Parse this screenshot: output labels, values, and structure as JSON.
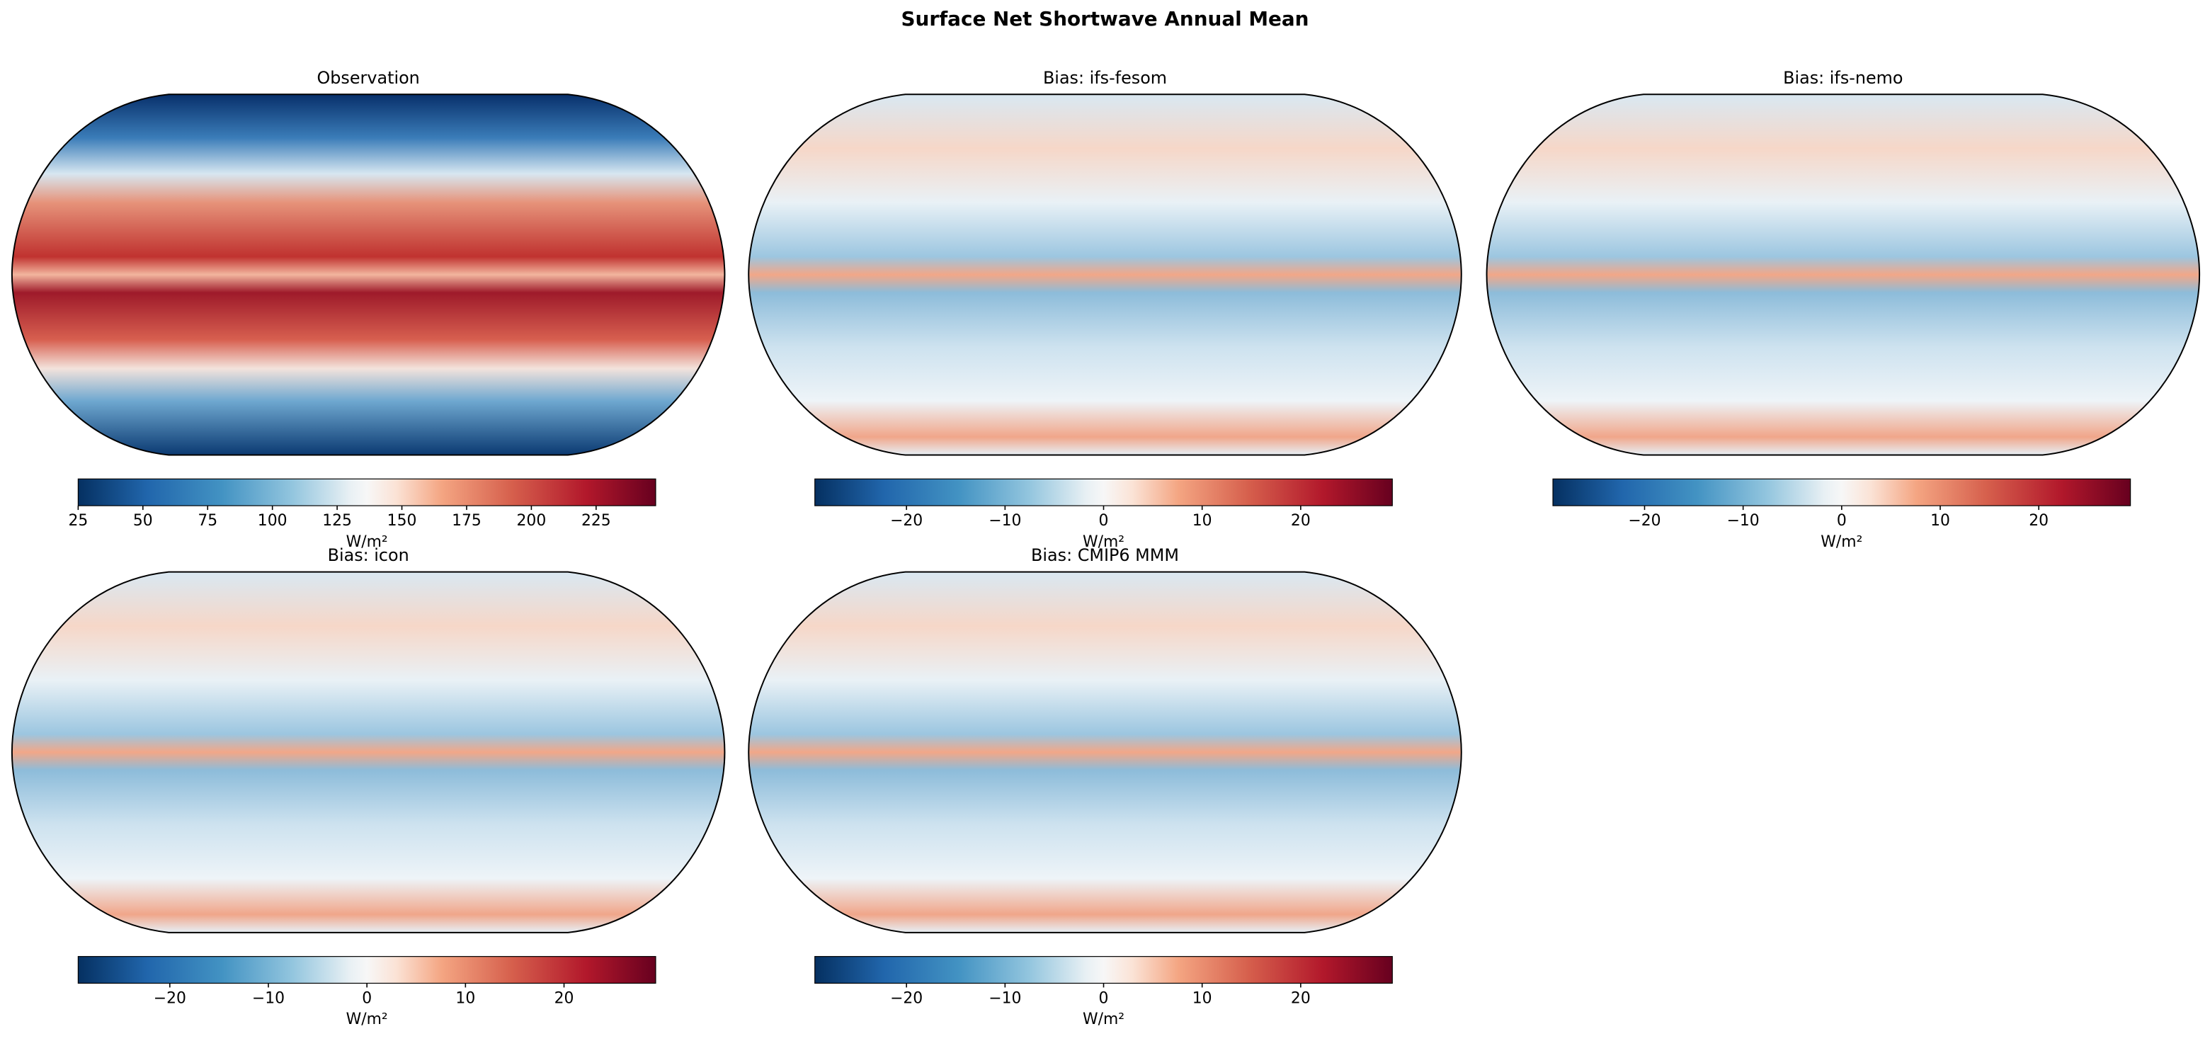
{
  "title": "Surface Net Shortwave Annual Mean",
  "panels": [
    {
      "title": "Observation",
      "colorbar": {
        "label": "W/m²",
        "lim": [
          25,
          248
        ],
        "ticks": [
          25,
          50,
          75,
          100,
          125,
          150,
          175,
          200,
          225
        ]
      }
    },
    {
      "title": "Bias: ifs-fesom",
      "colorbar": {
        "label": "W/m²",
        "lim": [
          -29.3,
          29.3
        ],
        "ticks": [
          {
            "value": -20,
            "label": "−20"
          },
          {
            "value": -10,
            "label": "−10"
          },
          0,
          10,
          20
        ]
      }
    },
    {
      "title": "Bias: ifs-nemo",
      "colorbar": {
        "label": "W/m²",
        "lim": [
          -29.3,
          29.3
        ],
        "ticks": [
          {
            "value": -20,
            "label": "−20"
          },
          {
            "value": -10,
            "label": "−10"
          },
          0,
          10,
          20
        ]
      }
    },
    {
      "title": "Bias: icon",
      "colorbar": {
        "label": "W/m²",
        "lim": [
          -29.3,
          29.3
        ],
        "ticks": [
          {
            "value": -20,
            "label": "−20"
          },
          {
            "value": -10,
            "label": "−10"
          },
          0,
          10,
          20
        ]
      }
    },
    {
      "title": "Bias: CMIP6 MMM",
      "colorbar": {
        "label": "W/m²",
        "lim": [
          -29.3,
          29.3
        ],
        "ticks": [
          {
            "value": -20,
            "label": "−20"
          },
          {
            "value": -10,
            "label": "−10"
          },
          0,
          10,
          20
        ]
      }
    }
  ]
}
